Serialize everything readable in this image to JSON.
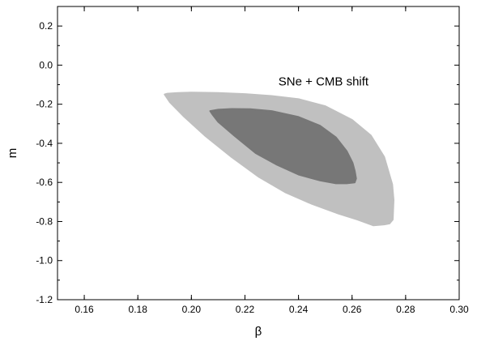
{
  "chart_data": {
    "type": "contour",
    "title": "",
    "annotation": "SNe + CMB shift",
    "xlabel": "β",
    "ylabel": "m",
    "xlim": [
      0.15,
      0.3
    ],
    "ylim": [
      -1.2,
      0.3
    ],
    "x_ticks": [
      0.16,
      0.18,
      0.2,
      0.22,
      0.24,
      0.26,
      0.28,
      0.3
    ],
    "y_ticks": [
      0.2,
      0.0,
      -0.2,
      -0.4,
      -0.6,
      -0.8,
      -1.0,
      -1.2
    ],
    "x_tick_labels": [
      "0.16",
      "0.18",
      "0.20",
      "0.22",
      "0.24",
      "0.26",
      "0.28",
      "0.30"
    ],
    "y_tick_labels": [
      "0.2",
      "0.0",
      "-0.2",
      "-0.4",
      "-0.6",
      "-0.8",
      "-1.0",
      "-1.2"
    ],
    "grid": false,
    "colors": {
      "outer": "#c0c0c0",
      "inner": "#777777",
      "axis": "#000000"
    },
    "regions": [
      {
        "level": "outer",
        "color": "#c0c0c0",
        "points": [
          [
            0.19,
            -0.15
          ],
          [
            0.191,
            -0.146
          ],
          [
            0.195,
            -0.142
          ],
          [
            0.2,
            -0.14
          ],
          [
            0.21,
            -0.142
          ],
          [
            0.22,
            -0.148
          ],
          [
            0.23,
            -0.158
          ],
          [
            0.24,
            -0.174
          ],
          [
            0.25,
            -0.21
          ],
          [
            0.26,
            -0.28
          ],
          [
            0.267,
            -0.36
          ],
          [
            0.272,
            -0.47
          ],
          [
            0.275,
            -0.61
          ],
          [
            0.2755,
            -0.69
          ],
          [
            0.2752,
            -0.79
          ],
          [
            0.274,
            -0.81
          ],
          [
            0.272,
            -0.815
          ],
          [
            0.268,
            -0.82
          ],
          [
            0.265,
            -0.805
          ],
          [
            0.262,
            -0.79
          ],
          [
            0.255,
            -0.76
          ],
          [
            0.245,
            -0.71
          ],
          [
            0.235,
            -0.65
          ],
          [
            0.225,
            -0.57
          ],
          [
            0.215,
            -0.47
          ],
          [
            0.205,
            -0.36
          ],
          [
            0.197,
            -0.26
          ],
          [
            0.192,
            -0.19
          ]
        ]
      },
      {
        "level": "inner",
        "color": "#777777",
        "points": [
          [
            0.207,
            -0.235
          ],
          [
            0.21,
            -0.228
          ],
          [
            0.215,
            -0.224
          ],
          [
            0.222,
            -0.225
          ],
          [
            0.23,
            -0.235
          ],
          [
            0.24,
            -0.265
          ],
          [
            0.248,
            -0.31
          ],
          [
            0.254,
            -0.37
          ],
          [
            0.258,
            -0.44
          ],
          [
            0.2602,
            -0.5
          ],
          [
            0.261,
            -0.54
          ],
          [
            0.2615,
            -0.58
          ],
          [
            0.261,
            -0.6
          ],
          [
            0.258,
            -0.605
          ],
          [
            0.254,
            -0.605
          ],
          [
            0.248,
            -0.59
          ],
          [
            0.24,
            -0.56
          ],
          [
            0.232,
            -0.51
          ],
          [
            0.224,
            -0.45
          ],
          [
            0.216,
            -0.36
          ],
          [
            0.21,
            -0.29
          ],
          [
            0.208,
            -0.255
          ]
        ]
      }
    ]
  }
}
